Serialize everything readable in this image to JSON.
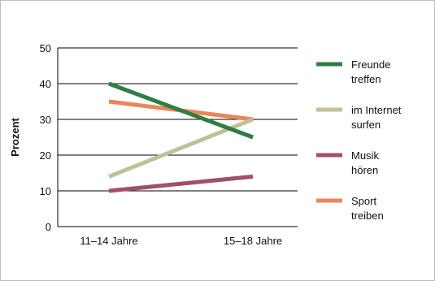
{
  "chart_data": {
    "type": "line",
    "ylabel": "Prozent",
    "xlabel": "",
    "title": "",
    "categories": [
      "11–14 Jahre",
      "15–18 Jahre"
    ],
    "ylim": [
      0,
      50
    ],
    "yticks": [
      0,
      10,
      20,
      30,
      40,
      50
    ],
    "grid": true,
    "legend_position": "right",
    "series": [
      {
        "name": "Freunde treffen",
        "label_lines": [
          "Freunde",
          "treffen"
        ],
        "color": "#2e7d45",
        "values": [
          40,
          25
        ]
      },
      {
        "name": "im Internet surfen",
        "label_lines": [
          "im Internet",
          "surfen"
        ],
        "color": "#c2c098",
        "values": [
          14,
          30
        ]
      },
      {
        "name": "Musik hören",
        "label_lines": [
          "Musik",
          "hören"
        ],
        "color": "#a15068",
        "values": [
          10,
          14
        ]
      },
      {
        "name": "Sport treiben",
        "label_lines": [
          "Sport",
          "treiben"
        ],
        "color": "#e8875a",
        "values": [
          35,
          30
        ]
      }
    ]
  }
}
